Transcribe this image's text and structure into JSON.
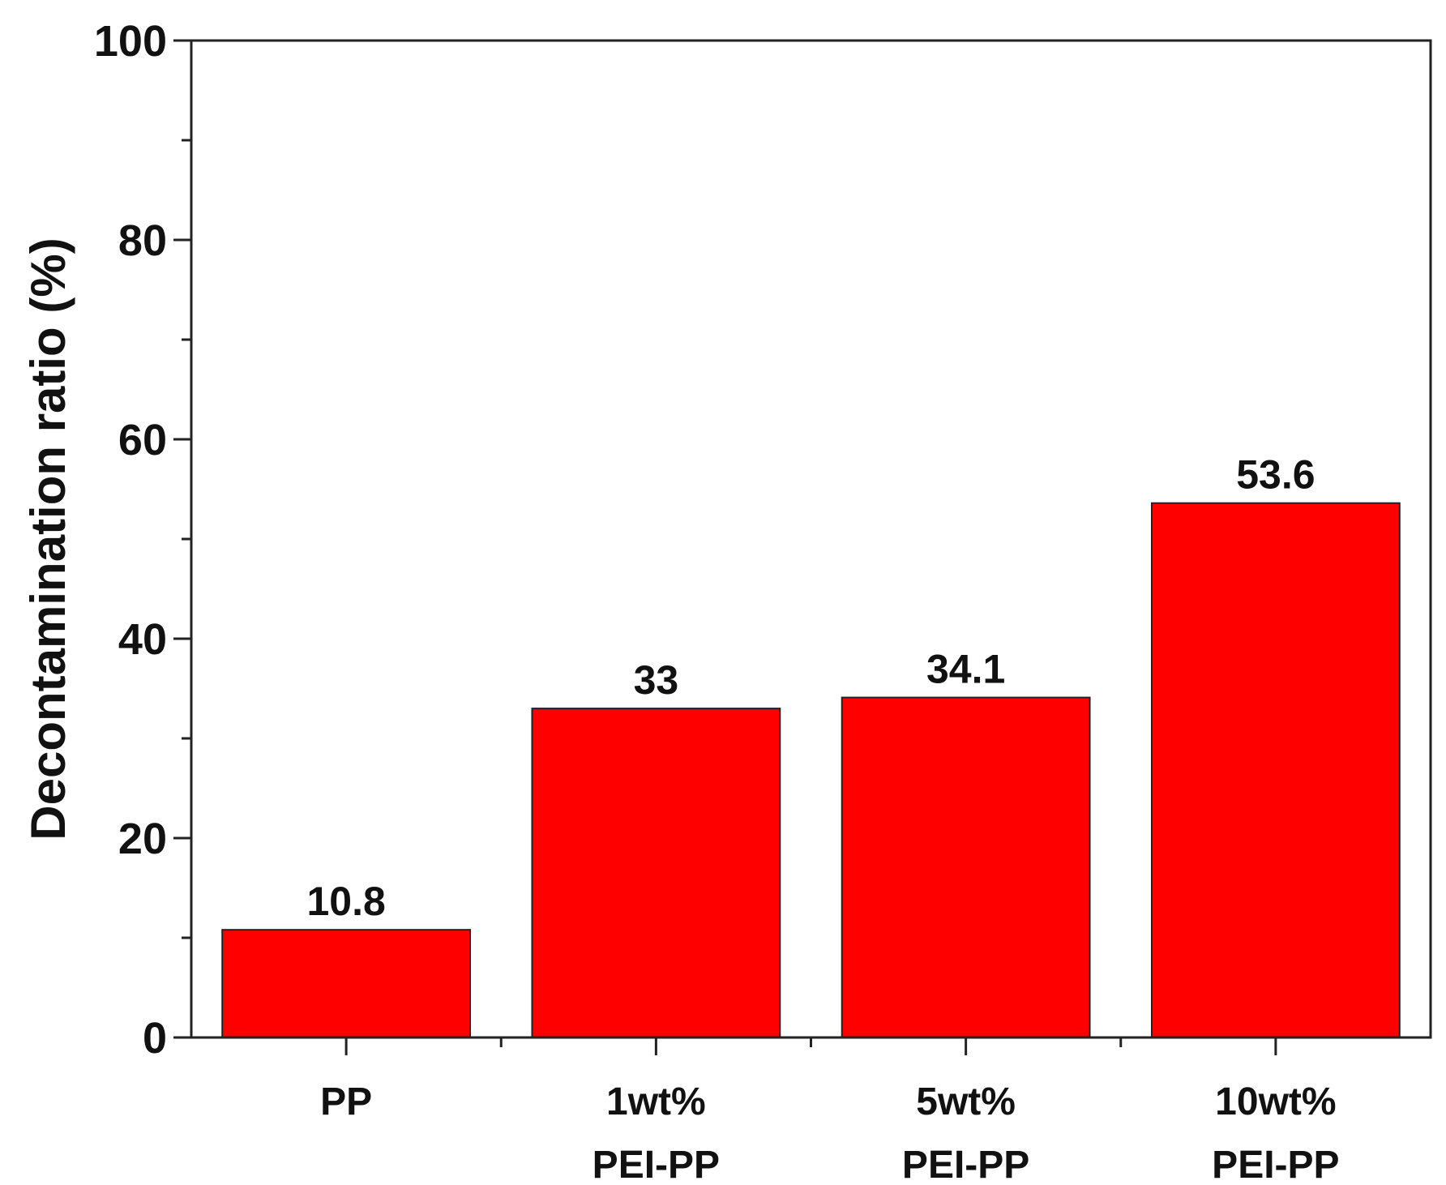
{
  "chart_data": {
    "type": "bar",
    "title": "",
    "xlabel": "",
    "ylabel": "Decontamination ratio (%)",
    "categories": [
      [
        "PP"
      ],
      [
        "1wt%",
        "PEI-PP"
      ],
      [
        "5wt%",
        "PEI-PP"
      ],
      [
        "10wt%",
        "PEI-PP"
      ]
    ],
    "values": [
      10.8,
      33,
      34.1,
      53.6
    ],
    "value_labels": [
      "10.8",
      "33",
      "34.1",
      "53.6"
    ],
    "ylim": [
      0,
      100
    ],
    "yticks": [
      0,
      20,
      40,
      60,
      80,
      100
    ],
    "bar_color": "#ff0000",
    "grid": false,
    "legend": "none"
  }
}
